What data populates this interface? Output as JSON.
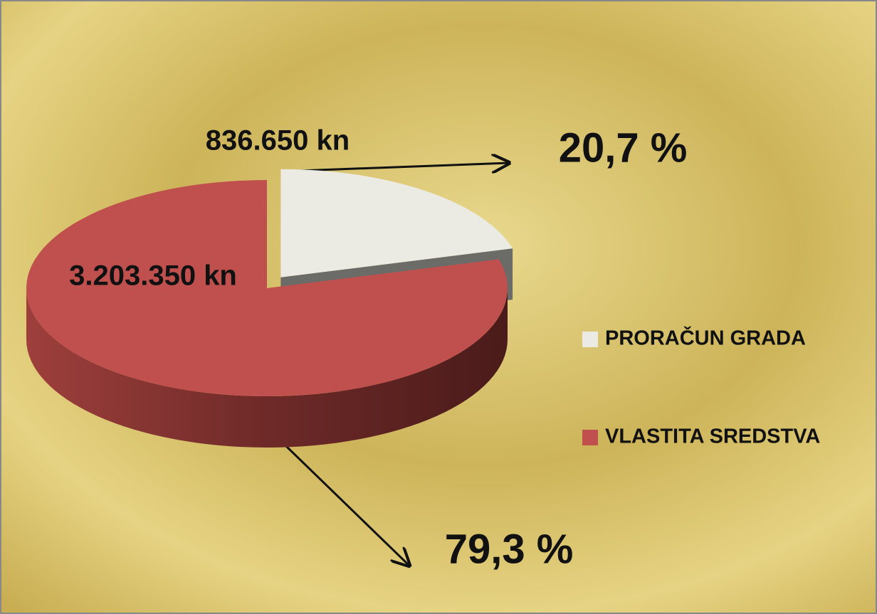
{
  "chart_data": {
    "type": "pie",
    "categories": [
      "PRORAČUN GRADA",
      "VLASTITA SREDSTVA"
    ],
    "values": [
      20.7,
      79.3
    ],
    "value_labels": [
      "20,7 %",
      "79,3 %"
    ],
    "amounts": [
      836650,
      3203350
    ],
    "amount_labels": [
      "836.650 kn",
      "3.203.350 kn"
    ],
    "colors": [
      "#ecebe3",
      "#c0504d"
    ],
    "legend": "right"
  }
}
